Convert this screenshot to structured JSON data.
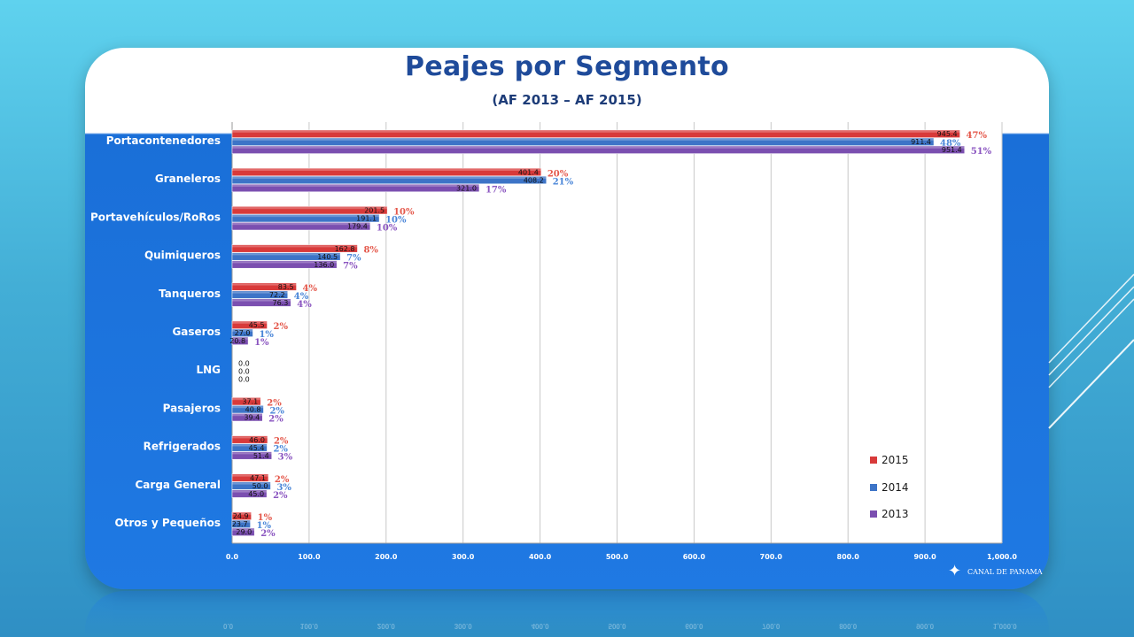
{
  "slide": {
    "title": "Peajes por Segmento",
    "subtitle": "(AF 2013 – AF 2015)",
    "logo_text": "CANAL DE PANAMA",
    "logo_icon": "star-icon"
  },
  "colors": {
    "2015": "#d83a3a",
    "2014": "#3d74c7",
    "2013": "#7b4fb0",
    "pct_2015": "#e4574a",
    "pct_2014": "#4a86d8",
    "pct_2013": "#8a55c0"
  },
  "chart_data": {
    "type": "bar",
    "orientation": "horizontal",
    "categories": [
      "Portacontenedores",
      "Graneleros",
      "Portavehículos/RoRos",
      "Quimiqueros",
      "Tanqueros",
      "Gaseros",
      "LNG",
      "Pasajeros",
      "Refrigerados",
      "Carga General",
      "Otros y Pequeños"
    ],
    "series": [
      {
        "name": "2015",
        "values": [
          945.4,
          401.4,
          201.5,
          162.8,
          83.5,
          45.5,
          0.0,
          37.1,
          46.0,
          47.1,
          24.9
        ],
        "pct_labels": [
          "47%",
          "20%",
          "10%",
          "8%",
          "4%",
          "2%",
          "",
          "2%",
          "2%",
          "2%",
          "1%"
        ]
      },
      {
        "name": "2014",
        "values": [
          911.4,
          408.2,
          191.1,
          140.5,
          72.2,
          27.0,
          0.0,
          40.8,
          45.4,
          50.0,
          23.7
        ],
        "pct_labels": [
          "48%",
          "21%",
          "10%",
          "7%",
          "4%",
          "1%",
          "",
          "2%",
          "2%",
          "3%",
          "1%"
        ]
      },
      {
        "name": "2013",
        "values": [
          951.4,
          321.0,
          179.4,
          136.0,
          76.3,
          20.8,
          0.0,
          39.4,
          51.4,
          45.0,
          29.0
        ],
        "pct_labels": [
          "51%",
          "17%",
          "10%",
          "7%",
          "4%",
          "1%",
          "",
          "2%",
          "3%",
          "2%",
          "2%"
        ]
      }
    ],
    "x_ticks": [
      "0.0",
      "100.0",
      "200.0",
      "300.0",
      "400.0",
      "500.0",
      "600.0",
      "700.0",
      "800.0",
      "900.0",
      "1,000.0"
    ],
    "xlim": [
      0,
      1000
    ],
    "grid": true,
    "legend_position": "bottom-right",
    "legend": [
      "2015",
      "2014",
      "2013"
    ]
  }
}
